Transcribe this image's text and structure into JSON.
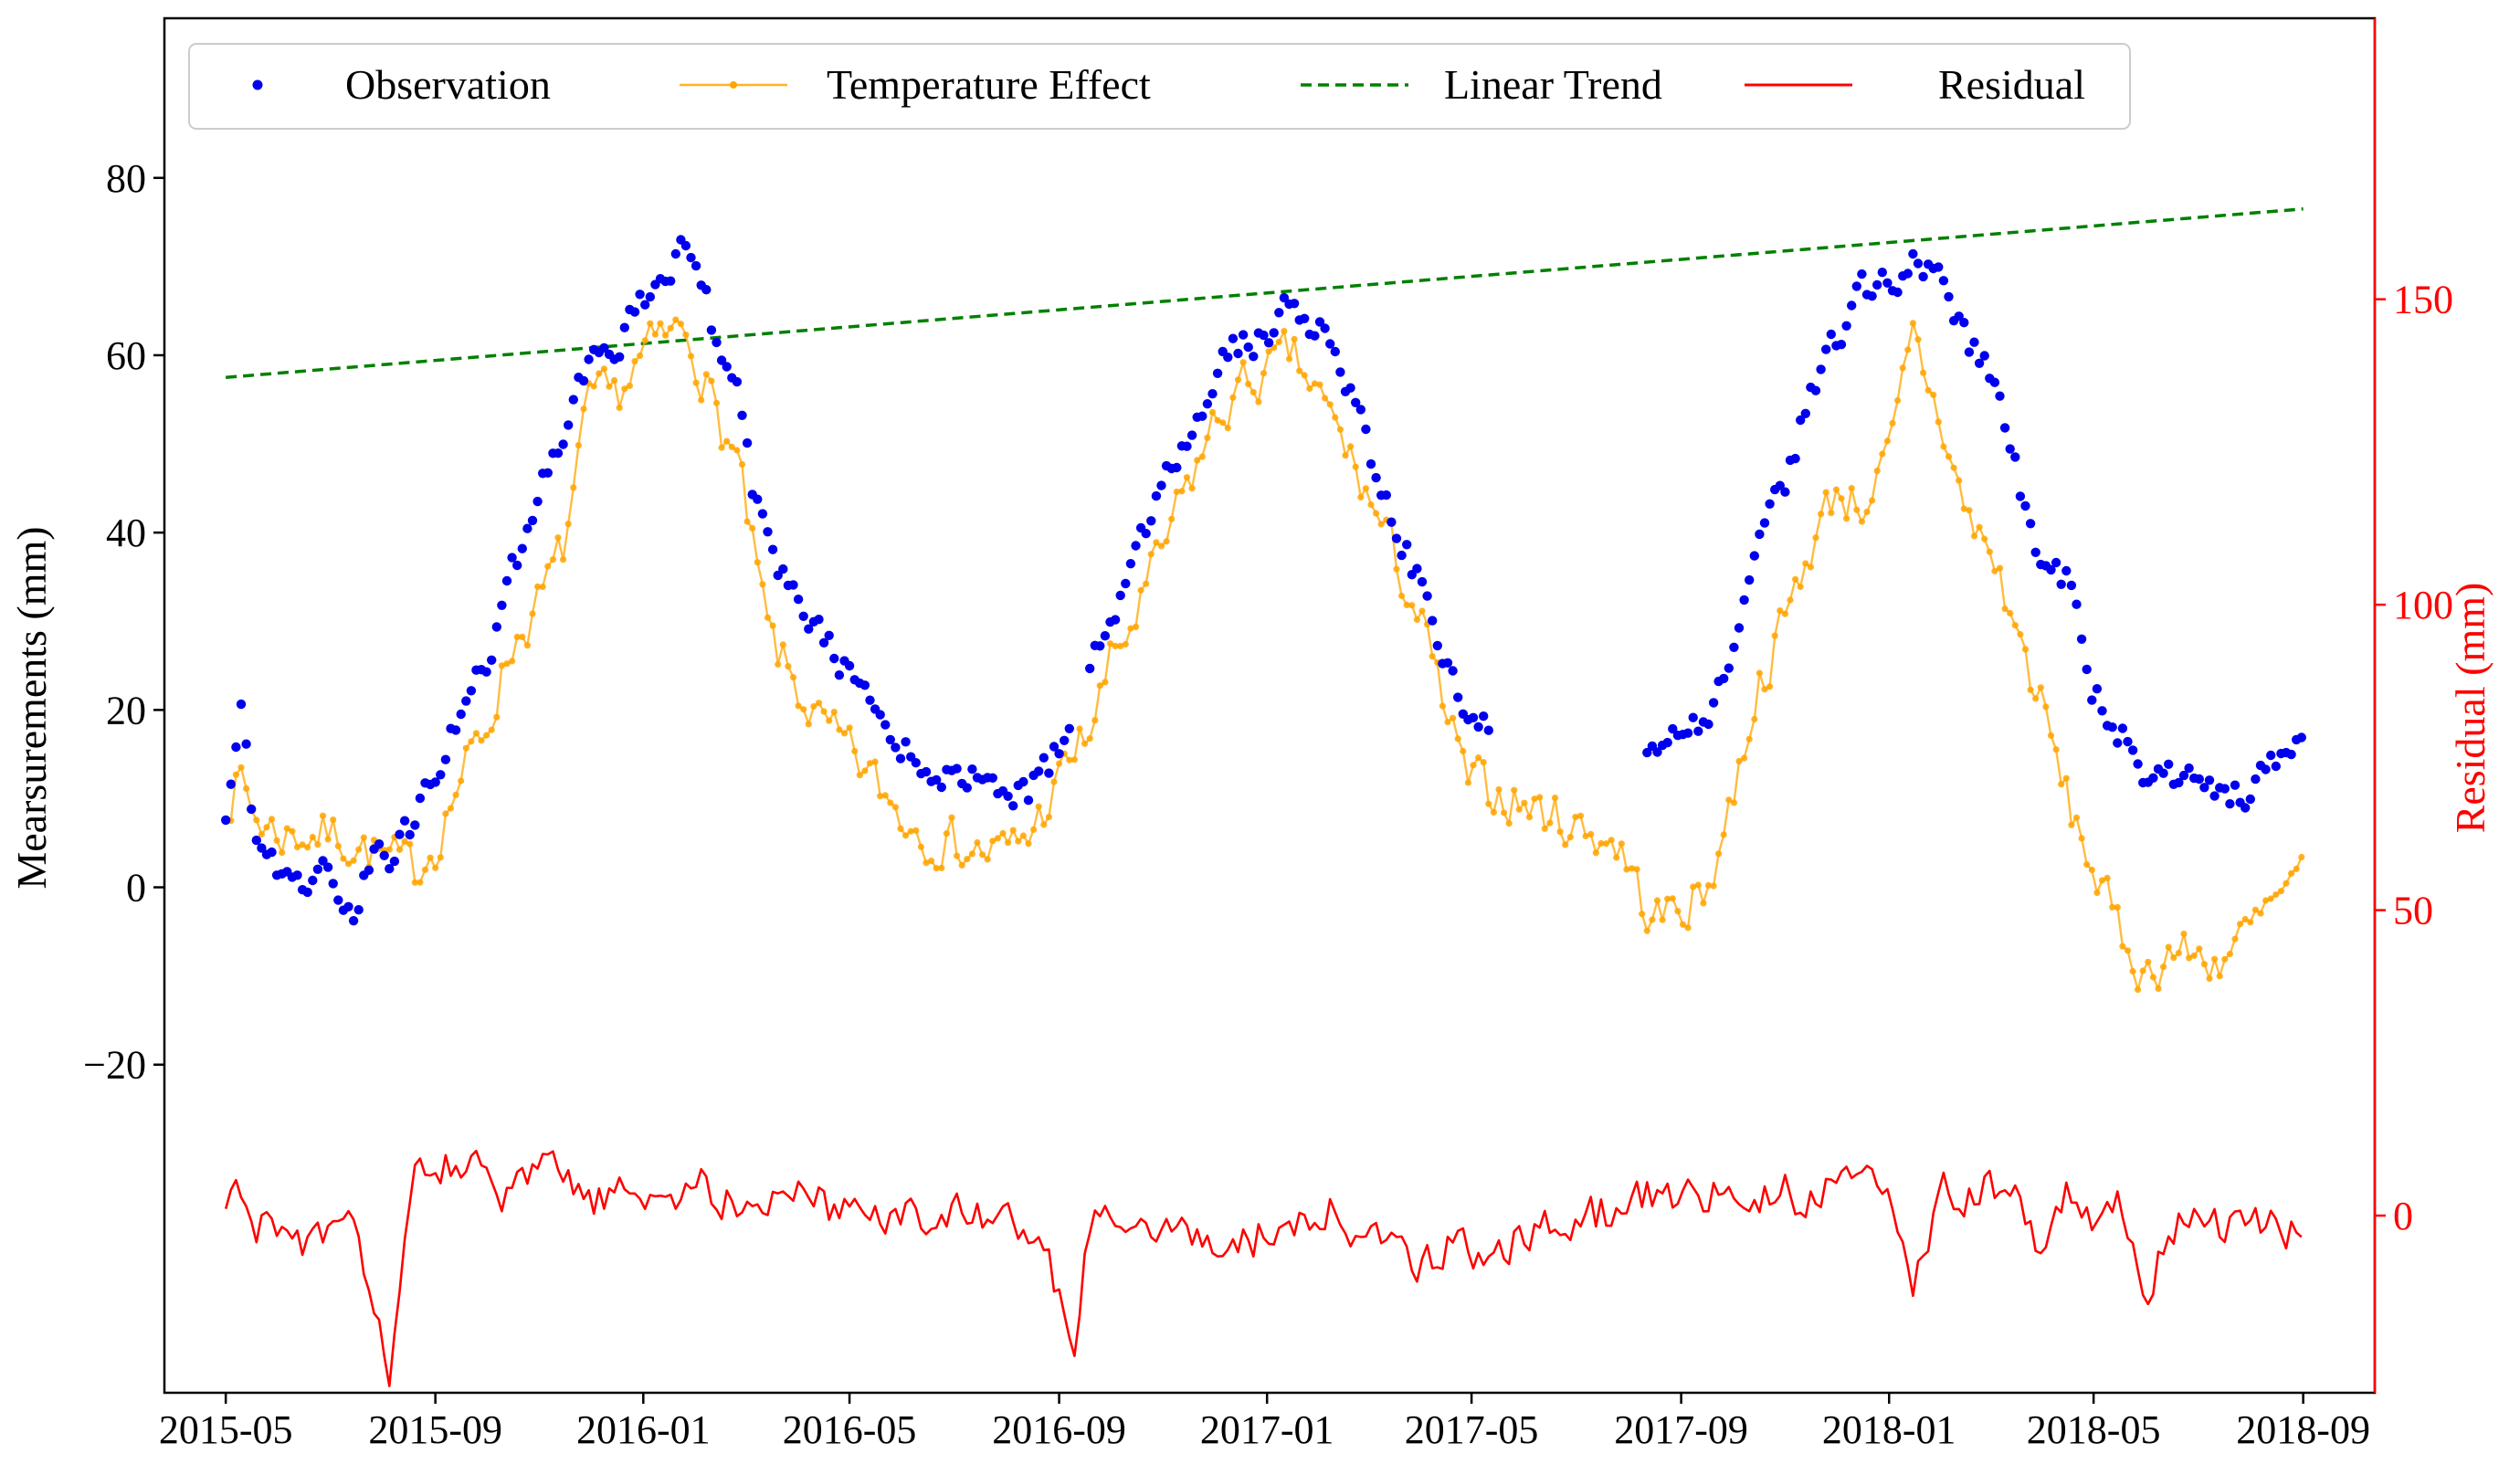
{
  "chart_data": {
    "type": "line",
    "title": "",
    "xlabel": "",
    "ylabel": "Mearsurements (mm)",
    "ylabel_right": "Residual (mm)",
    "ylim": [
      -57,
      98
    ],
    "ylim_right": [
      -29,
      196
    ],
    "x_range": [
      "2015-03-26",
      "2018-10-13"
    ],
    "x_ticks": [
      "2015-05",
      "2015-09",
      "2016-01",
      "2016-05",
      "2016-09",
      "2017-01",
      "2017-05",
      "2017-09",
      "2018-01",
      "2018-05",
      "2018-09"
    ],
    "y_ticks": [
      -20,
      0,
      20,
      40,
      60,
      80
    ],
    "y_ticks_right": [
      0,
      50,
      100,
      150
    ],
    "legend_position": "top-left",
    "legend": [
      "Observation",
      "Temperature Effect",
      "Linear Trend",
      "Residual"
    ],
    "colors": {
      "observation": "#0000ee",
      "temperature": "#ffa500",
      "trend": "#008000",
      "residual": "#ff0000",
      "right_axis": "#ff0000",
      "axis": "#000000"
    },
    "series": [
      {
        "name": "Observation",
        "style": "dots",
        "color": "#0000ee",
        "gaps_days": [
          [
            497,
            506
          ],
          [
            741,
            834
          ]
        ],
        "points": [
          [
            "2015-05-01",
            9
          ],
          [
            "2015-05-10",
            20
          ],
          [
            "2015-05-18",
            5
          ],
          [
            "2015-06-01",
            2
          ],
          [
            "2015-06-15",
            1
          ],
          [
            "2015-07-01",
            2
          ],
          [
            "2015-07-15",
            -3
          ],
          [
            "2015-07-25",
            3
          ],
          [
            "2015-08-05",
            3
          ],
          [
            "2015-08-20",
            8
          ],
          [
            "2015-09-01",
            12
          ],
          [
            "2015-09-15",
            20
          ],
          [
            "2015-10-01",
            25
          ],
          [
            "2015-10-15",
            35
          ],
          [
            "2015-11-01",
            45
          ],
          [
            "2015-11-15",
            52
          ],
          [
            "2015-12-01",
            60
          ],
          [
            "2015-12-15",
            61
          ],
          [
            "2016-01-01",
            66
          ],
          [
            "2016-01-15",
            70
          ],
          [
            "2016-01-26",
            72
          ],
          [
            "2016-02-05",
            68
          ],
          [
            "2016-02-15",
            60
          ],
          [
            "2016-02-25",
            56
          ],
          [
            "2016-03-05",
            45
          ],
          [
            "2016-03-15",
            38
          ],
          [
            "2016-04-01",
            32
          ],
          [
            "2016-04-15",
            28
          ],
          [
            "2016-05-01",
            24
          ],
          [
            "2016-05-15",
            20
          ],
          [
            "2016-06-01",
            16
          ],
          [
            "2016-06-15",
            14
          ],
          [
            "2016-07-01",
            12
          ],
          [
            "2016-07-15",
            12
          ],
          [
            "2016-08-01",
            11
          ],
          [
            "2016-08-15",
            11
          ],
          [
            "2016-09-10",
            18
          ],
          [
            "2016-09-20",
            25
          ],
          [
            "2016-10-01",
            28
          ],
          [
            "2016-10-15",
            38
          ],
          [
            "2016-11-01",
            45
          ],
          [
            "2016-11-15",
            50
          ],
          [
            "2016-12-01",
            58
          ],
          [
            "2016-12-15",
            61
          ],
          [
            "2017-01-01",
            62
          ],
          [
            "2017-01-15",
            66
          ],
          [
            "2017-02-01",
            63
          ],
          [
            "2017-02-15",
            58
          ],
          [
            "2017-03-01",
            50
          ],
          [
            "2017-03-15",
            42
          ],
          [
            "2017-04-01",
            34
          ],
          [
            "2017-04-15",
            26
          ],
          [
            "2017-04-28",
            18
          ],
          [
            "2017-07-26",
            16
          ],
          [
            "2017-08-15",
            15
          ],
          [
            "2017-09-01",
            18
          ],
          [
            "2017-09-15",
            18
          ],
          [
            "2017-10-01",
            28
          ],
          [
            "2017-10-15",
            40
          ],
          [
            "2017-11-01",
            45
          ],
          [
            "2017-11-15",
            55
          ],
          [
            "2017-12-01",
            62
          ],
          [
            "2017-12-15",
            67
          ],
          [
            "2018-01-01",
            68
          ],
          [
            "2018-01-15",
            70
          ],
          [
            "2018-02-01",
            68
          ],
          [
            "2018-02-15",
            62
          ],
          [
            "2018-03-01",
            58
          ],
          [
            "2018-03-15",
            48
          ],
          [
            "2018-04-01",
            36
          ],
          [
            "2018-04-15",
            35
          ],
          [
            "2018-05-01",
            22
          ],
          [
            "2018-05-15",
            18
          ],
          [
            "2018-06-01",
            12
          ],
          [
            "2018-06-15",
            13
          ],
          [
            "2018-07-01",
            12
          ],
          [
            "2018-07-15",
            10
          ],
          [
            "2018-08-01",
            11
          ],
          [
            "2018-08-15",
            14
          ],
          [
            "2018-09-01",
            16
          ]
        ]
      },
      {
        "name": "Temperature Effect",
        "style": "line-markers",
        "color": "#ffa500",
        "gaps_days": [],
        "points": [
          [
            "2015-05-01",
            10
          ],
          [
            "2015-05-10",
            12
          ],
          [
            "2015-05-18",
            8
          ],
          [
            "2015-06-01",
            6
          ],
          [
            "2015-06-15",
            6
          ],
          [
            "2015-07-01",
            6
          ],
          [
            "2015-07-15",
            5
          ],
          [
            "2015-07-25",
            4
          ],
          [
            "2015-08-05",
            3
          ],
          [
            "2015-08-20",
            2
          ],
          [
            "2015-09-01",
            5
          ],
          [
            "2015-09-15",
            12
          ],
          [
            "2015-10-01",
            18
          ],
          [
            "2015-10-15",
            27
          ],
          [
            "2015-11-01",
            32
          ],
          [
            "2015-11-15",
            38
          ],
          [
            "2015-12-01",
            55
          ],
          [
            "2015-12-15",
            55
          ],
          [
            "2016-01-01",
            60
          ],
          [
            "2016-01-15",
            62
          ],
          [
            "2016-01-26",
            63
          ],
          [
            "2016-02-05",
            58
          ],
          [
            "2016-02-15",
            52
          ],
          [
            "2016-02-25",
            48
          ],
          [
            "2016-03-05",
            38
          ],
          [
            "2016-03-15",
            28
          ],
          [
            "2016-04-01",
            22
          ],
          [
            "2016-04-15",
            18
          ],
          [
            "2016-05-01",
            15
          ],
          [
            "2016-05-15",
            12
          ],
          [
            "2016-06-01",
            8
          ],
          [
            "2016-06-15",
            6
          ],
          [
            "2016-07-01",
            5
          ],
          [
            "2016-07-15",
            4
          ],
          [
            "2016-08-01",
            4
          ],
          [
            "2016-08-15",
            6
          ],
          [
            "2016-09-10",
            15
          ],
          [
            "2016-09-20",
            18
          ],
          [
            "2016-10-01",
            25
          ],
          [
            "2016-10-15",
            30
          ],
          [
            "2016-11-01",
            38
          ],
          [
            "2016-11-15",
            45
          ],
          [
            "2016-12-01",
            52
          ],
          [
            "2016-12-15",
            56
          ],
          [
            "2017-01-01",
            58
          ],
          [
            "2017-01-15",
            60
          ],
          [
            "2017-02-01",
            55
          ],
          [
            "2017-02-15",
            50
          ],
          [
            "2017-03-01",
            44
          ],
          [
            "2017-03-15",
            38
          ],
          [
            "2017-04-01",
            30
          ],
          [
            "2017-04-15",
            20
          ],
          [
            "2017-04-28",
            12
          ],
          [
            "2017-07-26",
            5
          ],
          [
            "2017-08-15",
            -4
          ],
          [
            "2017-09-01",
            -2
          ],
          [
            "2017-09-15",
            -1
          ],
          [
            "2017-10-01",
            10
          ],
          [
            "2017-10-15",
            22
          ],
          [
            "2017-11-01",
            30
          ],
          [
            "2017-11-15",
            38
          ],
          [
            "2017-12-01",
            45
          ],
          [
            "2017-12-15",
            43
          ],
          [
            "2018-01-01",
            48
          ],
          [
            "2018-01-15",
            62
          ],
          [
            "2018-02-01",
            52
          ],
          [
            "2018-02-15",
            42
          ],
          [
            "2018-03-01",
            38
          ],
          [
            "2018-03-15",
            30
          ],
          [
            "2018-04-01",
            20
          ],
          [
            "2018-04-15",
            10
          ],
          [
            "2018-05-01",
            2
          ],
          [
            "2018-05-15",
            -5
          ],
          [
            "2018-06-01",
            -10
          ],
          [
            "2018-06-15",
            -7
          ],
          [
            "2018-07-01",
            -8
          ],
          [
            "2018-07-15",
            -8
          ],
          [
            "2018-08-01",
            -5
          ],
          [
            "2018-08-15",
            -2
          ],
          [
            "2018-09-01",
            1
          ]
        ]
      },
      {
        "name": "Linear Trend",
        "style": "dashed",
        "color": "#008000",
        "points": [
          [
            "2015-05-01",
            57.5
          ],
          [
            "2018-09-01",
            76.5
          ]
        ]
      },
      {
        "name": "Residual",
        "style": "line",
        "axis": "right",
        "color": "#ff0000",
        "points": [
          [
            "2015-05-01",
            0
          ],
          [
            "2015-05-10",
            5
          ],
          [
            "2015-05-18",
            -1
          ],
          [
            "2015-06-01",
            -3
          ],
          [
            "2015-06-15",
            -4
          ],
          [
            "2015-07-01",
            -4
          ],
          [
            "2015-07-15",
            -3
          ],
          [
            "2015-07-25",
            -10
          ],
          [
            "2015-08-05",
            -26
          ],
          [
            "2015-08-20",
            5
          ],
          [
            "2015-09-01",
            8
          ],
          [
            "2015-09-15",
            10
          ],
          [
            "2015-10-01",
            5
          ],
          [
            "2015-10-15",
            2
          ],
          [
            "2015-11-01",
            8
          ],
          [
            "2015-11-15",
            6
          ],
          [
            "2015-12-01",
            2
          ],
          [
            "2015-12-15",
            3
          ],
          [
            "2016-01-01",
            4
          ],
          [
            "2016-01-15",
            3
          ],
          [
            "2016-01-26",
            3
          ],
          [
            "2016-02-05",
            6
          ],
          [
            "2016-02-15",
            2
          ],
          [
            "2016-02-25",
            3
          ],
          [
            "2016-03-05",
            2
          ],
          [
            "2016-03-15",
            4
          ],
          [
            "2016-04-01",
            3
          ],
          [
            "2016-04-15",
            2
          ],
          [
            "2016-05-01",
            1
          ],
          [
            "2016-05-15",
            2
          ],
          [
            "2016-06-01",
            0
          ],
          [
            "2016-06-15",
            1
          ],
          [
            "2016-07-01",
            0
          ],
          [
            "2016-07-15",
            -1
          ],
          [
            "2016-08-01",
            0
          ],
          [
            "2016-08-15",
            -2
          ],
          [
            "2016-09-10",
            -19
          ],
          [
            "2016-09-20",
            1
          ],
          [
            "2016-10-01",
            -1
          ],
          [
            "2016-10-15",
            0
          ],
          [
            "2016-11-01",
            -1
          ],
          [
            "2016-11-15",
            -2
          ],
          [
            "2016-12-01",
            -5
          ],
          [
            "2016-12-15",
            -4
          ],
          [
            "2017-01-01",
            -3
          ],
          [
            "2017-01-15",
            -2
          ],
          [
            "2017-02-01",
            0
          ],
          [
            "2017-02-15",
            1
          ],
          [
            "2017-03-01",
            -5
          ],
          [
            "2017-03-15",
            -5
          ],
          [
            "2017-04-01",
            -7
          ],
          [
            "2017-04-15",
            -5
          ],
          [
            "2017-04-28",
            -6
          ],
          [
            "2017-07-26",
            1
          ],
          [
            "2017-08-15",
            4
          ],
          [
            "2017-09-01",
            3
          ],
          [
            "2017-09-15",
            4
          ],
          [
            "2017-10-01",
            3
          ],
          [
            "2017-10-15",
            3
          ],
          [
            "2017-11-01",
            4
          ],
          [
            "2017-11-15",
            3
          ],
          [
            "2017-12-01",
            6
          ],
          [
            "2017-12-15",
            8
          ],
          [
            "2018-01-01",
            2
          ],
          [
            "2018-01-15",
            -10
          ],
          [
            "2018-02-01",
            4
          ],
          [
            "2018-02-15",
            3
          ],
          [
            "2018-03-01",
            5
          ],
          [
            "2018-03-15",
            3
          ],
          [
            "2018-04-01",
            -8
          ],
          [
            "2018-04-15",
            4
          ],
          [
            "2018-05-01",
            0
          ],
          [
            "2018-05-15",
            2
          ],
          [
            "2018-06-01",
            -12
          ],
          [
            "2018-06-15",
            -1
          ],
          [
            "2018-07-01",
            0
          ],
          [
            "2018-07-15",
            -1
          ],
          [
            "2018-08-01",
            0
          ],
          [
            "2018-08-15",
            -2
          ],
          [
            "2018-09-01",
            -4
          ]
        ]
      }
    ]
  }
}
